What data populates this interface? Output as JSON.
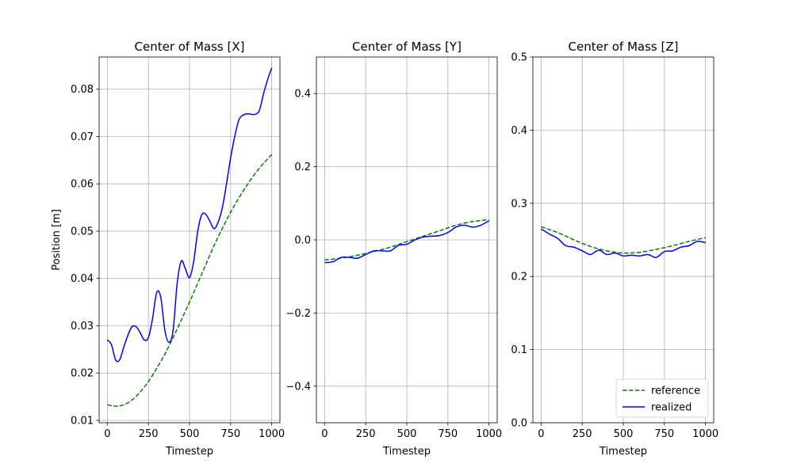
{
  "figure": {
    "colors": {
      "reference": "#008000",
      "realized": "#0000ff",
      "grid": "#b0b0b0",
      "axis": "#000000"
    },
    "legend": {
      "placement": "lower-right",
      "entries": [
        {
          "label": "reference",
          "style": "dashed",
          "color": "#008000"
        },
        {
          "label": "realized",
          "style": "solid",
          "color": "#0000ff"
        }
      ]
    }
  },
  "chart_data": [
    {
      "type": "line",
      "title": "Center of Mass [X]",
      "xlabel": "Timestep",
      "ylabel": "Position [m]",
      "xlim": [
        -50,
        1050
      ],
      "ylim": [
        0.0095,
        0.0868
      ],
      "xticks": [
        0,
        250,
        500,
        750,
        1000
      ],
      "xtick_labels": [
        "0",
        "250",
        "500",
        "750",
        "1000"
      ],
      "yticks": [
        0.01,
        0.02,
        0.03,
        0.04,
        0.05,
        0.06,
        0.07,
        0.08
      ],
      "ytick_labels": [
        "0.01",
        "0.02",
        "0.03",
        "0.04",
        "0.05",
        "0.06",
        "0.07",
        "0.08"
      ],
      "grid": true,
      "series": [
        {
          "name": "reference",
          "style": "dashed",
          "color": "#008000",
          "x": [
            0,
            50,
            100,
            150,
            200,
            250,
            300,
            350,
            400,
            450,
            500,
            550,
            600,
            650,
            700,
            750,
            800,
            850,
            900,
            950,
            1000
          ],
          "y": [
            0.0133,
            0.013,
            0.0133,
            0.0143,
            0.016,
            0.0182,
            0.021,
            0.024,
            0.0275,
            0.0312,
            0.035,
            0.039,
            0.043,
            0.047,
            0.0506,
            0.054,
            0.057,
            0.0597,
            0.0622,
            0.0643,
            0.0662
          ]
        },
        {
          "name": "realized",
          "style": "solid",
          "color": "#0000ff",
          "x": [
            0,
            25,
            50,
            75,
            100,
            125,
            150,
            175,
            200,
            225,
            250,
            275,
            300,
            325,
            350,
            375,
            400,
            425,
            450,
            475,
            500,
            525,
            550,
            575,
            600,
            625,
            650,
            675,
            700,
            725,
            750,
            775,
            800,
            825,
            850,
            875,
            900,
            925,
            950,
            975,
            1000
          ],
          "y": [
            0.027,
            0.026,
            0.0228,
            0.0228,
            0.0255,
            0.028,
            0.0298,
            0.0298,
            0.0285,
            0.027,
            0.0275,
            0.0315,
            0.037,
            0.036,
            0.029,
            0.0265,
            0.029,
            0.039,
            0.0437,
            0.042,
            0.0402,
            0.0435,
            0.05,
            0.0535,
            0.0535,
            0.052,
            0.0505,
            0.052,
            0.055,
            0.06,
            0.0655,
            0.07,
            0.0735,
            0.0745,
            0.0748,
            0.0747,
            0.0747,
            0.0755,
            0.079,
            0.082,
            0.0845
          ]
        }
      ]
    },
    {
      "type": "line",
      "title": "Center of Mass [Y]",
      "xlabel": "Timestep",
      "ylabel": "",
      "xlim": [
        -50,
        1050
      ],
      "ylim": [
        -0.5,
        0.5
      ],
      "xticks": [
        0,
        250,
        500,
        750,
        1000
      ],
      "xtick_labels": [
        "0",
        "250",
        "500",
        "750",
        "1000"
      ],
      "yticks": [
        -0.4,
        -0.2,
        0.0,
        0.2,
        0.4
      ],
      "ytick_labels": [
        "−0.4",
        "−0.2",
        "0.0",
        "0.2",
        "0.4"
      ],
      "grid": true,
      "series": [
        {
          "name": "reference",
          "style": "dashed",
          "color": "#008000",
          "x": [
            0,
            100,
            200,
            300,
            400,
            500,
            600,
            700,
            800,
            900,
            1000
          ],
          "y": [
            -0.055,
            -0.05,
            -0.042,
            -0.032,
            -0.02,
            -0.005,
            0.01,
            0.025,
            0.04,
            0.05,
            0.055
          ]
        },
        {
          "name": "realized",
          "style": "solid",
          "color": "#0000ff",
          "x": [
            0,
            50,
            100,
            150,
            200,
            250,
            300,
            350,
            400,
            450,
            500,
            550,
            600,
            650,
            700,
            750,
            800,
            850,
            900,
            950,
            1000
          ],
          "y": [
            -0.062,
            -0.06,
            -0.048,
            -0.048,
            -0.05,
            -0.04,
            -0.03,
            -0.03,
            -0.03,
            -0.015,
            -0.012,
            0.0,
            0.008,
            0.01,
            0.012,
            0.02,
            0.035,
            0.04,
            0.035,
            0.04,
            0.052
          ]
        }
      ]
    },
    {
      "type": "line",
      "title": "Center of Mass [Z]",
      "xlabel": "Timestep",
      "ylabel": "",
      "xlim": [
        -50,
        1050
      ],
      "ylim": [
        0.0,
        0.5
      ],
      "xticks": [
        0,
        250,
        500,
        750,
        1000
      ],
      "xtick_labels": [
        "0",
        "250",
        "500",
        "750",
        "1000"
      ],
      "yticks": [
        0.0,
        0.1,
        0.2,
        0.3,
        0.4,
        0.5
      ],
      "ytick_labels": [
        "0.0",
        "0.1",
        "0.2",
        "0.3",
        "0.4",
        "0.5"
      ],
      "grid": true,
      "series": [
        {
          "name": "reference",
          "style": "dashed",
          "color": "#008000",
          "x": [
            0,
            100,
            200,
            300,
            400,
            500,
            600,
            700,
            800,
            900,
            1000
          ],
          "y": [
            0.268,
            0.26,
            0.25,
            0.241,
            0.235,
            0.232,
            0.233,
            0.237,
            0.242,
            0.248,
            0.253
          ]
        },
        {
          "name": "realized",
          "style": "solid",
          "color": "#0000ff",
          "x": [
            0,
            50,
            100,
            150,
            200,
            250,
            300,
            350,
            400,
            450,
            500,
            550,
            600,
            650,
            700,
            750,
            800,
            850,
            900,
            950,
            1000
          ],
          "y": [
            0.265,
            0.258,
            0.252,
            0.242,
            0.24,
            0.235,
            0.23,
            0.236,
            0.23,
            0.232,
            0.228,
            0.229,
            0.228,
            0.23,
            0.226,
            0.234,
            0.235,
            0.24,
            0.242,
            0.248,
            0.246
          ]
        }
      ]
    }
  ]
}
